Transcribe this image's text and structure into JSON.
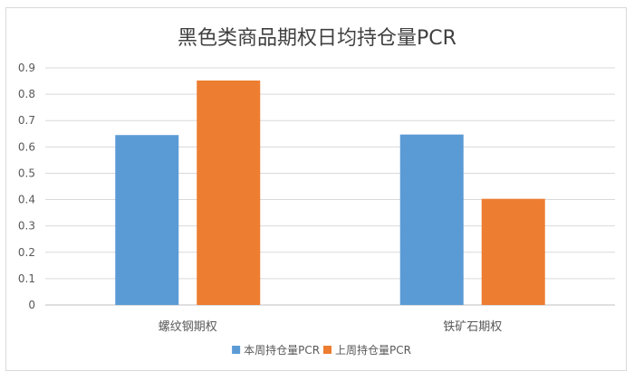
{
  "chart_data": {
    "type": "bar",
    "title": "黑色类商品期权日均持仓量PCR",
    "categories": [
      "螺纹钢期权",
      "铁矿石期权"
    ],
    "series": [
      {
        "name": "本周持仓量PCR",
        "values": [
          0.645,
          0.647
        ],
        "color": "#5B9BD5"
      },
      {
        "name": "上周持仓量PCR",
        "values": [
          0.852,
          0.403
        ],
        "color": "#ED7D31"
      }
    ],
    "ylim": [
      0,
      0.9
    ],
    "yticks": [
      "0",
      "0.1",
      "0.2",
      "0.3",
      "0.4",
      "0.5",
      "0.6",
      "0.7",
      "0.8",
      "0.9"
    ],
    "xlabel": "",
    "ylabel": "",
    "grid": true,
    "legend": "bottom"
  }
}
